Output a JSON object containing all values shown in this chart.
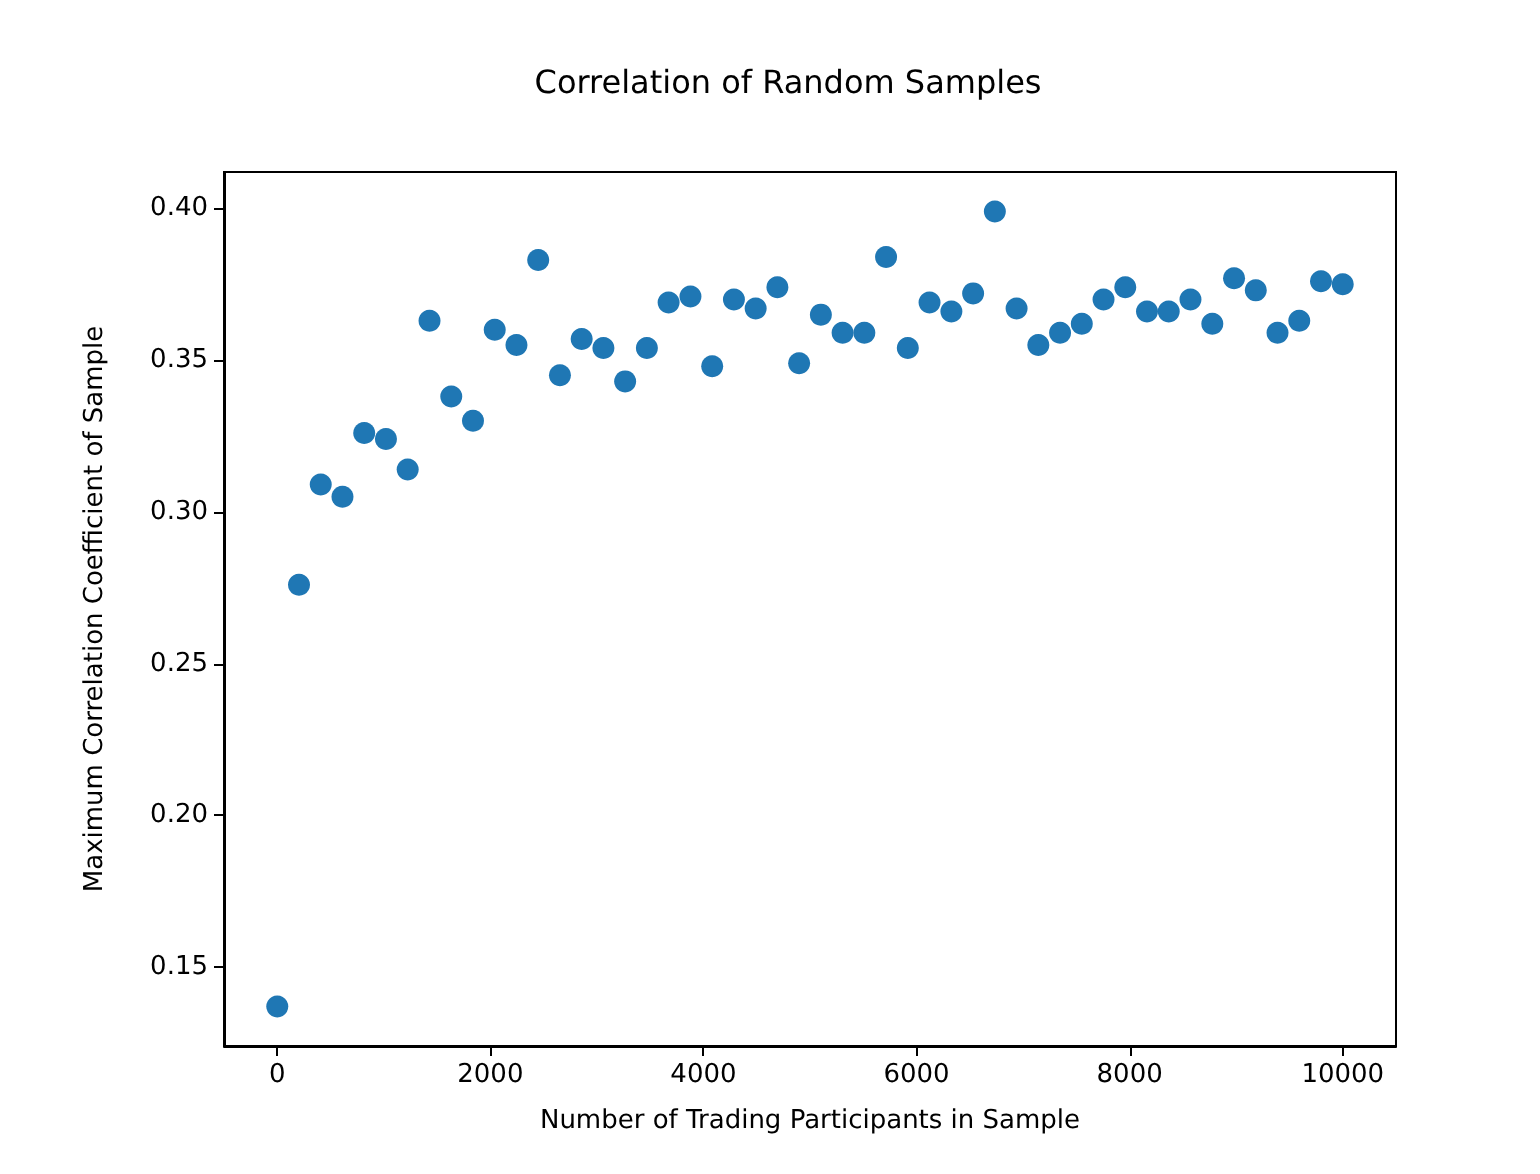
{
  "chart_data": {
    "type": "scatter",
    "title": "Correlation of Random Samples",
    "xlabel": "Number of Trading Participants in Sample",
    "ylabel": "Maximum Correlation Coefficient of Sample",
    "x": [
      0,
      204,
      408,
      612,
      816,
      1020,
      1224,
      1429,
      1633,
      1837,
      2041,
      2245,
      2449,
      2653,
      2857,
      3061,
      3265,
      3469,
      3673,
      3878,
      4082,
      4286,
      4490,
      4694,
      4898,
      5102,
      5306,
      5510,
      5714,
      5918,
      6122,
      6327,
      6531,
      6735,
      6939,
      7143,
      7347,
      7551,
      7755,
      7959,
      8163,
      8367,
      8571,
      8776,
      8980,
      9184,
      9388,
      9592,
      9796,
      10000
    ],
    "series": [
      {
        "color": "#1f77b4",
        "values": [
          0.137,
          0.276,
          0.309,
          0.305,
          0.326,
          0.324,
          0.314,
          0.363,
          0.338,
          0.33,
          0.36,
          0.355,
          0.383,
          0.345,
          0.357,
          0.354,
          0.343,
          0.354,
          0.369,
          0.371,
          0.348,
          0.37,
          0.367,
          0.374,
          0.349,
          0.365,
          0.359,
          0.359,
          0.384,
          0.354,
          0.369,
          0.366,
          0.372,
          0.399,
          0.367,
          0.355,
          0.359,
          0.362,
          0.37,
          0.374,
          0.366,
          0.366,
          0.37,
          0.362,
          0.377,
          0.373,
          0.359,
          0.363,
          0.376,
          0.375
        ]
      }
    ],
    "xlim": [
      -500,
      10500
    ],
    "xticks": [
      0,
      2000,
      4000,
      6000,
      8000,
      10000
    ],
    "ylim": [
      0.124,
      0.412
    ],
    "yticks": [
      0.15,
      {
        "value": 0.2,
        "label": "0.20"
      },
      0.25,
      {
        "value": 0.3,
        "label": "0.30"
      },
      0.35,
      {
        "value": 0.4,
        "label": "0.40"
      }
    ],
    "marker": "circle",
    "grid": false
  }
}
